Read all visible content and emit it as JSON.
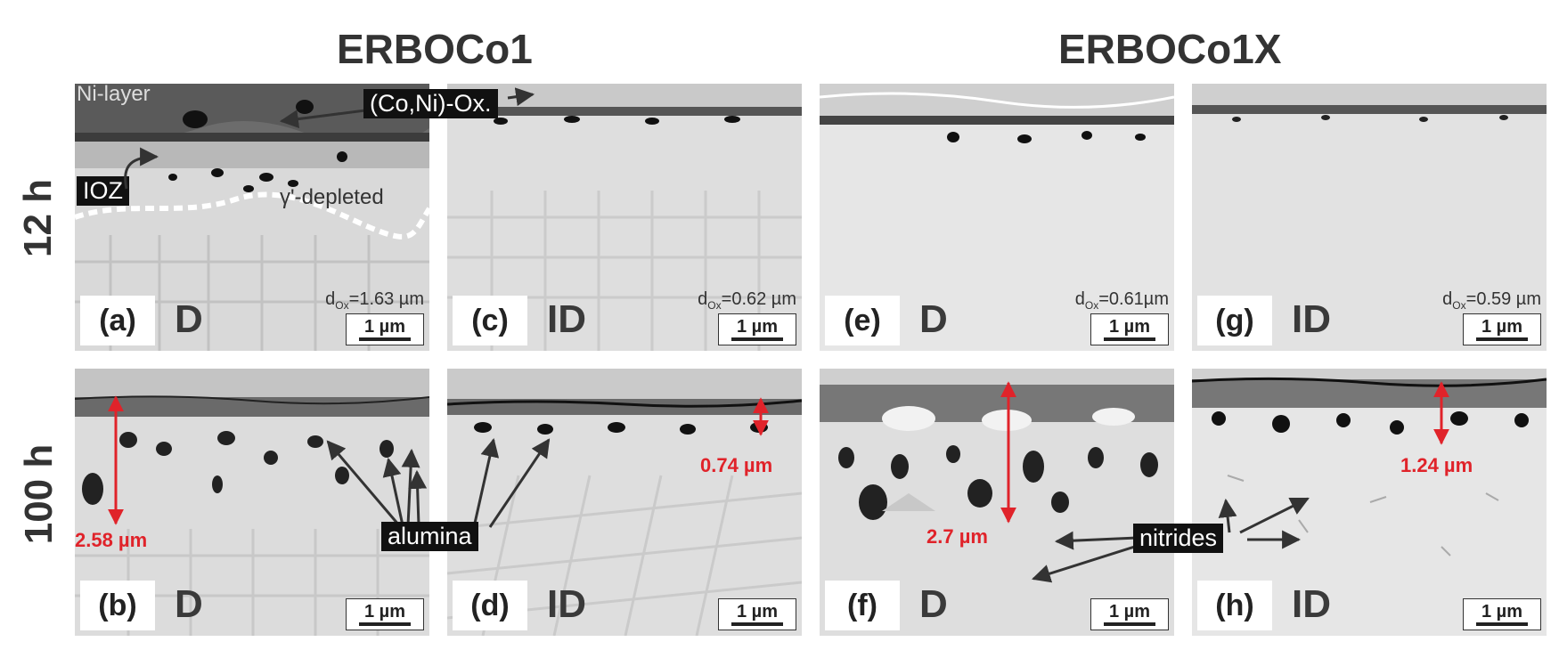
{
  "columns": [
    "ERBOCo1",
    "ERBOCo1X"
  ],
  "rows": [
    "12 h",
    "100 h"
  ],
  "scale_label": "1 µm",
  "panels": [
    {
      "label": "(a)",
      "condition": "D",
      "dox": "=1.63 µm"
    },
    {
      "label": "(c)",
      "condition": "ID",
      "dox": "=0.62 µm"
    },
    {
      "label": "(e)",
      "condition": "D",
      "dox": "=0.61µm"
    },
    {
      "label": "(g)",
      "condition": "ID",
      "dox": "=0.59 µm"
    },
    {
      "label": "(b)",
      "condition": "D"
    },
    {
      "label": "(d)",
      "condition": "ID"
    },
    {
      "label": "(f)",
      "condition": "D"
    },
    {
      "label": "(h)",
      "condition": "ID"
    }
  ],
  "dox_symbol": "d",
  "dox_sub": "Ox",
  "annotations": {
    "ni_layer": "Ni-layer",
    "coni_ox": "(Co,Ni)-Ox.",
    "ioz": "IOZ",
    "gamma_depleted": "γ'-depleted",
    "alumina": "alumina",
    "nitrides": "nitrides",
    "thickness_b": "2.58 µm",
    "thickness_d": "0.74 µm",
    "thickness_f": "2.7 µm",
    "thickness_h": "1.24 µm"
  },
  "colors": {
    "measurement": "#e0232a",
    "label_bg": "#111111"
  }
}
